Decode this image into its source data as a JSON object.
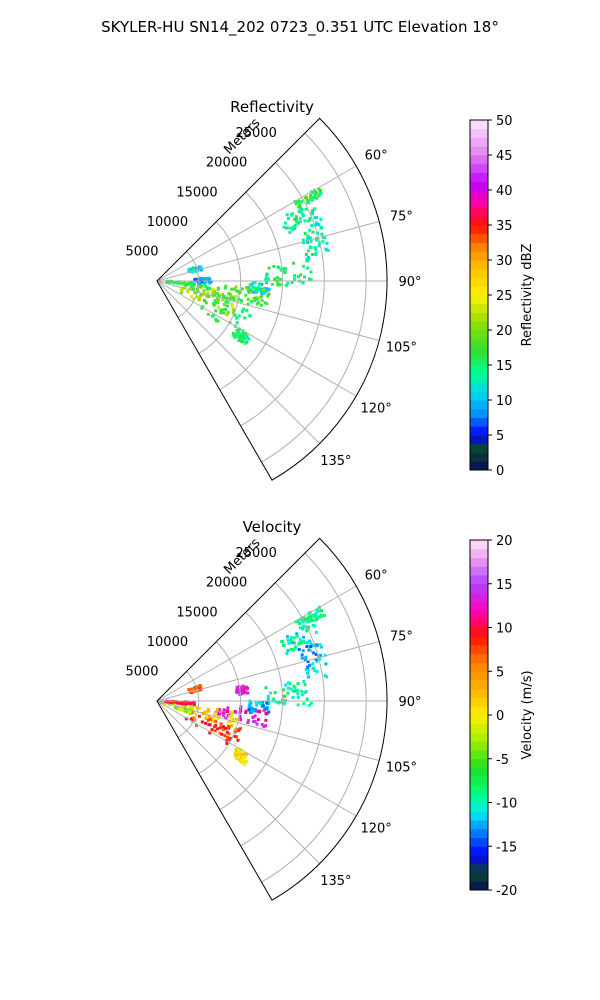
{
  "figure": {
    "title": "SKYLER-HU  SN14_202  0723_0.351 UTC Elevation 18°"
  },
  "chart_data": [
    {
      "type": "heatmap",
      "projection": "polar-sector",
      "title": "Reflectivity",
      "range_axis_label": "Meters",
      "range_ticks": [
        "5000",
        "10000",
        "15000",
        "20000",
        "25000"
      ],
      "range_max": 27500,
      "azimuth_range_deg": [
        45,
        150
      ],
      "azimuth_ticks": [
        "60°",
        "75°",
        "90°",
        "105°",
        "120°",
        "135°"
      ],
      "grid": true,
      "colorbar": {
        "label": "Reflectivity dBZ",
        "min": 0,
        "max": 50,
        "ticks": [
          "0",
          "5",
          "10",
          "15",
          "20",
          "25",
          "30",
          "35",
          "40",
          "45",
          "50"
        ],
        "colormap": [
          [
            0,
            "#0a0a5c"
          ],
          [
            3,
            "#0a4a2a"
          ],
          [
            5,
            "#0000ff"
          ],
          [
            8,
            "#0090ff"
          ],
          [
            11,
            "#00d8f0"
          ],
          [
            14,
            "#00ff90"
          ],
          [
            17,
            "#30e030"
          ],
          [
            21,
            "#90e000"
          ],
          [
            25,
            "#fff000"
          ],
          [
            29,
            "#ffc000"
          ],
          [
            32,
            "#ff8000"
          ],
          [
            35,
            "#ff1000"
          ],
          [
            38,
            "#ff00a0"
          ],
          [
            41,
            "#c000ff"
          ],
          [
            45,
            "#e080f0"
          ],
          [
            50,
            "#ffe8ff"
          ]
        ]
      },
      "echo_regions": [
        {
          "az": [
            60,
            63
          ],
          "range": [
            19000,
            22500
          ],
          "value": 16
        },
        {
          "az": [
            63,
            70
          ],
          "range": [
            16500,
            21000
          ],
          "value": 14
        },
        {
          "az": [
            70,
            82
          ],
          "range": [
            18000,
            21000
          ],
          "value": 13
        },
        {
          "az": [
            82,
            92
          ],
          "range": [
            13000,
            18500
          ],
          "value": 15
        },
        {
          "az": [
            90,
            97
          ],
          "range": [
            11000,
            13500
          ],
          "value": 12
        },
        {
          "az": [
            94,
            104
          ],
          "range": [
            7000,
            13500
          ],
          "value": 18
        },
        {
          "az": [
            98,
            116
          ],
          "range": [
            3000,
            10000
          ],
          "value": 21
        },
        {
          "az": [
            102,
            124
          ],
          "range": [
            6000,
            12000
          ],
          "value": 17
        },
        {
          "az": [
            91,
            98
          ],
          "range": [
            1000,
            6500
          ],
          "value": 16
        },
        {
          "az": [
            86,
            93
          ],
          "range": [
            4500,
            6500
          ],
          "value": 8
        },
        {
          "az": [
            70,
            76
          ],
          "range": [
            4000,
            5500
          ],
          "value": 11
        },
        {
          "az": [
            120,
            126
          ],
          "range": [
            11000,
            13000
          ],
          "value": 15
        }
      ]
    },
    {
      "type": "heatmap",
      "projection": "polar-sector",
      "title": "Velocity",
      "range_axis_label": "Meters",
      "range_ticks": [
        "5000",
        "10000",
        "15000",
        "20000",
        "25000"
      ],
      "range_max": 27500,
      "azimuth_range_deg": [
        45,
        150
      ],
      "azimuth_ticks": [
        "60°",
        "75°",
        "90°",
        "105°",
        "120°",
        "135°"
      ],
      "grid": true,
      "colorbar": {
        "label": "Velocity (m/s)",
        "min": -20,
        "max": 20,
        "ticks": [
          "-20",
          "-15",
          "-10",
          "-5",
          "0",
          "5",
          "10",
          "15",
          "20"
        ],
        "colormap": [
          [
            -20,
            "#0a0a5c"
          ],
          [
            -18,
            "#0a4a2a"
          ],
          [
            -16,
            "#0000ff"
          ],
          [
            -13,
            "#0090ff"
          ],
          [
            -11,
            "#00f0f0"
          ],
          [
            -9,
            "#00ff80"
          ],
          [
            -6,
            "#20e020"
          ],
          [
            -3,
            "#a0f000"
          ],
          [
            0,
            "#fff000"
          ],
          [
            3,
            "#ffb000"
          ],
          [
            6,
            "#ff8000"
          ],
          [
            9,
            "#ff1000"
          ],
          [
            12,
            "#ff00c0"
          ],
          [
            15,
            "#b040ff"
          ],
          [
            18,
            "#f0a0f0"
          ],
          [
            20,
            "#ffe8ff"
          ]
        ]
      },
      "echo_regions": [
        {
          "az": [
            60,
            63
          ],
          "range": [
            19000,
            22500
          ],
          "value": -9
        },
        {
          "az": [
            63,
            70
          ],
          "range": [
            16500,
            21000
          ],
          "value": -10
        },
        {
          "az": [
            70,
            82
          ],
          "range": [
            18000,
            21000
          ],
          "value": -12
        },
        {
          "az": [
            82,
            92
          ],
          "range": [
            13000,
            18500
          ],
          "value": -9
        },
        {
          "az": [
            90,
            97
          ],
          "range": [
            11000,
            13500
          ],
          "value": -12
        },
        {
          "az": [
            94,
            104
          ],
          "range": [
            7000,
            13500
          ],
          "value": 13
        },
        {
          "az": [
            98,
            110
          ],
          "range": [
            3000,
            10000
          ],
          "value": 2
        },
        {
          "az": [
            108,
            122
          ],
          "range": [
            4000,
            11000
          ],
          "value": 8
        },
        {
          "az": [
            96,
            112
          ],
          "range": [
            500,
            4500
          ],
          "value": -3
        },
        {
          "az": [
            91,
            96
          ],
          "range": [
            1000,
            4500
          ],
          "value": 10
        },
        {
          "az": [
            70,
            76
          ],
          "range": [
            4000,
            5500
          ],
          "value": 7
        },
        {
          "az": [
            80,
            86
          ],
          "range": [
            9500,
            11000
          ],
          "value": 13
        },
        {
          "az": [
            120,
            126
          ],
          "range": [
            11000,
            13000
          ],
          "value": 1
        }
      ]
    }
  ]
}
